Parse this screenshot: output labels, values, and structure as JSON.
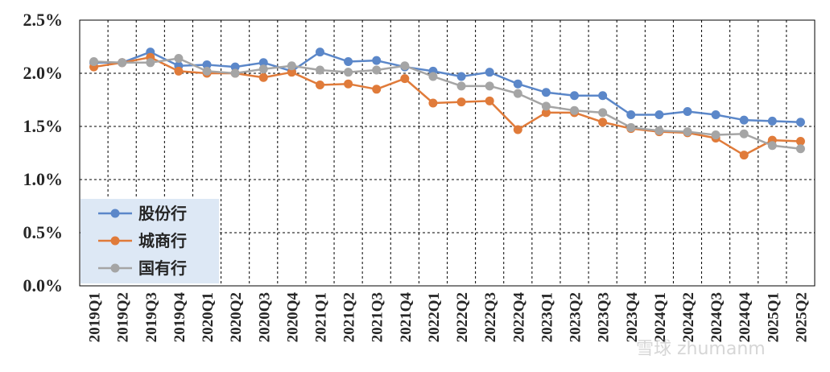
{
  "chart_data": {
    "type": "line",
    "title": "",
    "xlabel": "",
    "ylabel": "",
    "ylim": [
      0,
      2.5
    ],
    "yticks": [
      "0.0%",
      "0.5%",
      "1.0%",
      "1.5%",
      "2.0%",
      "2.5%"
    ],
    "grid": true,
    "legend_position": "bottom-left",
    "categories": [
      "2019Q1",
      "2019Q2",
      "2019Q3",
      "2019Q4",
      "2020Q1",
      "2020Q2",
      "2020Q3",
      "2020Q4",
      "2021Q1",
      "2021Q2",
      "2021Q3",
      "2021Q4",
      "2022Q1",
      "2022Q2",
      "2022Q3",
      "2022Q4",
      "2023Q1",
      "2023Q2",
      "2023Q3",
      "2023Q4",
      "2024Q1",
      "2024Q2",
      "2024Q3",
      "2024Q4",
      "2025Q1",
      "2025Q2"
    ],
    "series": [
      {
        "name": "股份行",
        "color": "#5B87C9",
        "values": [
          2.1,
          2.1,
          2.2,
          2.07,
          2.08,
          2.06,
          2.1,
          2.02,
          2.2,
          2.11,
          2.12,
          2.06,
          2.02,
          1.97,
          2.01,
          1.9,
          1.82,
          1.79,
          1.79,
          1.61,
          1.61,
          1.64,
          1.61,
          1.56,
          1.55,
          1.54
        ]
      },
      {
        "name": "城商行",
        "color": "#E07B3A",
        "values": [
          2.06,
          2.1,
          2.15,
          2.02,
          2.0,
          2.0,
          1.96,
          2.01,
          1.89,
          1.9,
          1.85,
          1.95,
          1.72,
          1.73,
          1.74,
          1.47,
          1.63,
          1.63,
          1.54,
          1.48,
          1.45,
          1.44,
          1.39,
          1.23,
          1.37,
          1.36
        ]
      },
      {
        "name": "国有行",
        "color": "#A5A5A5",
        "values": [
          2.11,
          2.1,
          2.1,
          2.14,
          2.02,
          2.0,
          2.04,
          2.07,
          2.03,
          2.01,
          2.03,
          2.07,
          1.97,
          1.88,
          1.88,
          1.81,
          1.69,
          1.65,
          1.63,
          1.49,
          1.46,
          1.45,
          1.42,
          1.43,
          1.32,
          1.29
        ]
      }
    ]
  },
  "watermark": "雪球 zhumanm"
}
